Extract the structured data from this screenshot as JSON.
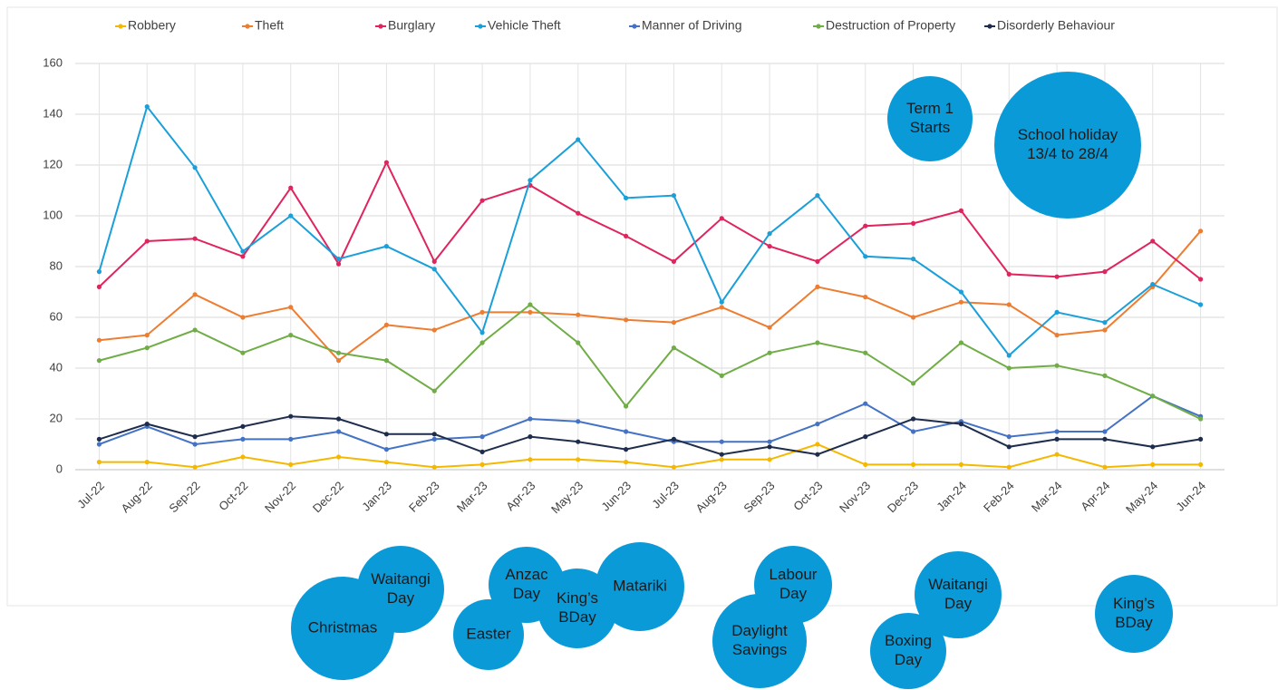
{
  "chart_data": {
    "type": "line",
    "categories": [
      "Jul-22",
      "Aug-22",
      "Sep-22",
      "Oct-22",
      "Nov-22",
      "Dec-22",
      "Jan-23",
      "Feb-23",
      "Mar-23",
      "Apr-23",
      "May-23",
      "Jun-23",
      "Jul-23",
      "Aug-23",
      "Sep-23",
      "Oct-23",
      "Nov-23",
      "Dec-23",
      "Jan-24",
      "Feb-24",
      "Mar-24",
      "Apr-24",
      "May-24",
      "Jun-24"
    ],
    "series": [
      {
        "name": "Robbery",
        "color": "#f5b800",
        "values": [
          3,
          3,
          1,
          5,
          2,
          5,
          3,
          1,
          2,
          4,
          4,
          3,
          1,
          4,
          4,
          10,
          2,
          2,
          2,
          1,
          6,
          1,
          2,
          2
        ]
      },
      {
        "name": "Theft",
        "color": "#ed7d31",
        "values": [
          51,
          53,
          69,
          60,
          64,
          43,
          57,
          55,
          62,
          62,
          61,
          59,
          58,
          64,
          56,
          72,
          68,
          60,
          66,
          65,
          53,
          55,
          72,
          94
        ]
      },
      {
        "name": "Burglary",
        "color": "#e0245e",
        "values": [
          72,
          90,
          91,
          84,
          111,
          81,
          121,
          82,
          106,
          112,
          101,
          92,
          82,
          99,
          88,
          82,
          96,
          97,
          102,
          77,
          76,
          78,
          90,
          75
        ]
      },
      {
        "name": "Vehicle Theft",
        "color": "#1a9fd9",
        "values": [
          78,
          143,
          119,
          86,
          100,
          83,
          88,
          79,
          54,
          114,
          130,
          107,
          108,
          66,
          93,
          108,
          84,
          83,
          70,
          45,
          62,
          58,
          73,
          65
        ]
      },
      {
        "name": "Manner of Driving",
        "color": "#4472c4",
        "values": [
          10,
          17,
          10,
          12,
          12,
          15,
          8,
          12,
          13,
          20,
          19,
          15,
          11,
          11,
          11,
          18,
          26,
          15,
          19,
          13,
          15,
          15,
          29,
          21
        ]
      },
      {
        "name": "Destruction of Property",
        "color": "#70ad47",
        "values": [
          43,
          48,
          55,
          46,
          53,
          46,
          43,
          31,
          50,
          65,
          50,
          25,
          48,
          37,
          46,
          50,
          46,
          34,
          50,
          40,
          41,
          37,
          29,
          20
        ]
      },
      {
        "name": "Disorderly Behaviour",
        "color": "#1f2d4d",
        "values": [
          12,
          18,
          13,
          17,
          21,
          20,
          14,
          14,
          7,
          13,
          11,
          8,
          12,
          6,
          9,
          6,
          13,
          20,
          18,
          9,
          12,
          12,
          9,
          12
        ]
      }
    ],
    "ylim": [
      0,
      160
    ],
    "yticks": [
      0,
      20,
      40,
      60,
      80,
      100,
      120,
      140,
      160
    ],
    "grid": true,
    "legend": "top",
    "annotations": [
      {
        "lines": [
          "Term 1",
          "Starts"
        ]
      },
      {
        "lines": [
          "School holiday",
          "13/4 to 28/4"
        ]
      },
      {
        "lines": [
          "Waitangi",
          "Day"
        ]
      },
      {
        "lines": [
          "Christmas"
        ]
      },
      {
        "lines": [
          "Anzac",
          "Day"
        ]
      },
      {
        "lines": [
          "Easter"
        ]
      },
      {
        "lines": [
          "King’s",
          "BDay"
        ]
      },
      {
        "lines": [
          "Matariki"
        ]
      },
      {
        "lines": [
          "Labour",
          "Day"
        ]
      },
      {
        "lines": [
          "Daylight",
          "Savings"
        ]
      },
      {
        "lines": [
          "Waitangi",
          "Day"
        ]
      },
      {
        "lines": [
          "Boxing",
          "Day"
        ]
      },
      {
        "lines": [
          "King’s",
          "BDay"
        ]
      }
    ],
    "annotation_color": "#0b9ad8"
  }
}
